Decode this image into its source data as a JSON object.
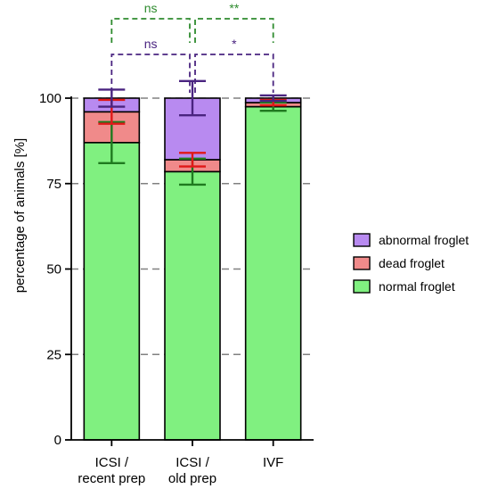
{
  "chart_data": {
    "type": "bar",
    "stacked": true,
    "title": "",
    "xlabel": "",
    "ylabel": "percentage of animals [%]",
    "ylim": [
      0,
      100
    ],
    "yticks": [
      0,
      25,
      50,
      75,
      100
    ],
    "grid": "horizontal dashed at 25, 50, 75, 100",
    "legend_position": "right",
    "categories": [
      [
        "ICSI /",
        "recent prep"
      ],
      [
        "ICSI /",
        "old prep"
      ],
      [
        "IVF"
      ]
    ],
    "series": [
      {
        "name": "normal froglet",
        "color": "#80f080",
        "error_color": "#1f7a1f",
        "values": [
          87,
          78.5,
          97.5
        ],
        "errors": [
          6,
          3.8,
          1.2
        ]
      },
      {
        "name": "dead froglet",
        "color": "#f08a8a",
        "error_color": "#e01818",
        "values": [
          9,
          3.5,
          1.2
        ],
        "errors": [
          3.5,
          2,
          0.8
        ]
      },
      {
        "name": "abnormal froglet",
        "color": "#b88af0",
        "error_color": "#4a2480",
        "values": [
          4,
          18,
          1.3
        ],
        "errors": [
          2.5,
          5,
          0.8
        ]
      }
    ],
    "legend_order": [
      "abnormal froglet",
      "dead froglet",
      "normal froglet"
    ],
    "significance": [
      {
        "from": 0,
        "to": 1,
        "label": "ns",
        "color": "#2e8b2e",
        "level": 2
      },
      {
        "from": 1,
        "to": 2,
        "label": "**",
        "color": "#2e8b2e",
        "level": 2
      },
      {
        "from": 0,
        "to": 1,
        "label": "ns",
        "color": "#4a2480",
        "level": 1
      },
      {
        "from": 1,
        "to": 2,
        "label": "*",
        "color": "#4a2480",
        "level": 1
      }
    ]
  }
}
